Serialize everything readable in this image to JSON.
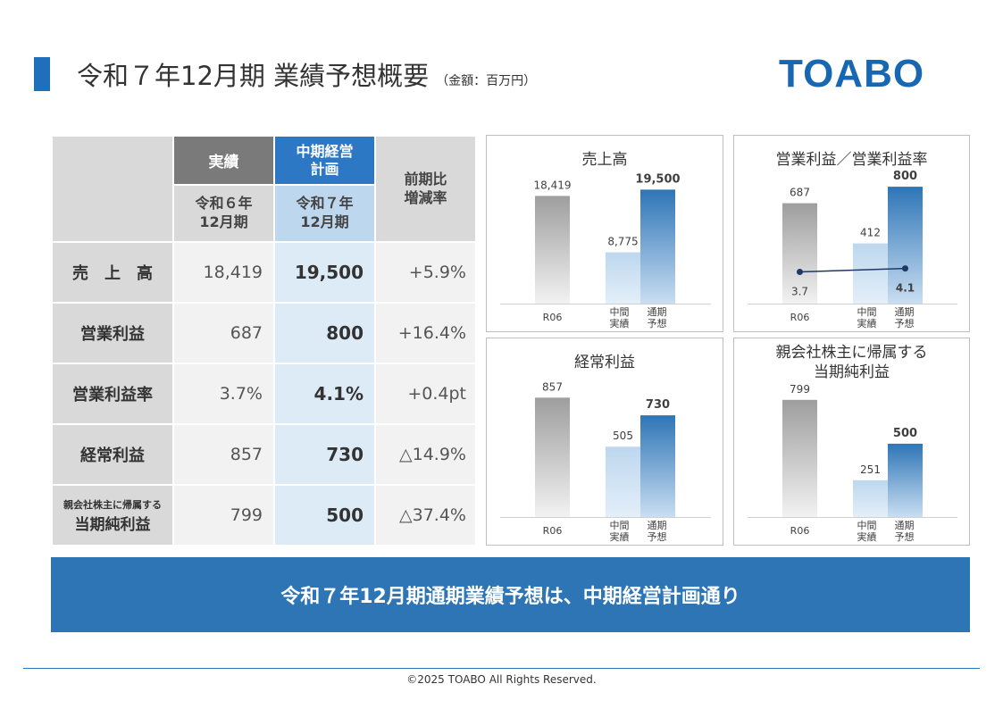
{
  "header": {
    "title": "令和７年12月期 業績予想概要",
    "unit": "（金額：百万円）",
    "logo": "TOABO"
  },
  "table": {
    "col_actual": "実績",
    "col_plan": "中期経営計画",
    "col_plan_l1": "中期経営",
    "col_plan_l2": "計画",
    "col_yoy_l1": "前期比",
    "col_yoy_l2": "増減率",
    "period_actual_l1": "令和６年",
    "period_actual_l2": "12月期",
    "period_plan_l1": "令和７年",
    "period_plan_l2": "12月期",
    "rows": [
      {
        "label": "売　上　高",
        "actual": "18,419",
        "plan": "19,500",
        "yoy": "+5.9%"
      },
      {
        "label": "営業利益",
        "actual": "687",
        "plan": "800",
        "yoy": "+16.4%"
      },
      {
        "label": "営業利益率",
        "actual": "3.7%",
        "plan": "4.1%",
        "yoy": "+0.4pt"
      },
      {
        "label": "経常利益",
        "actual": "857",
        "plan": "730",
        "yoy": "△14.9%"
      },
      {
        "label_small": "親会社株主に帰属する",
        "label": "当期純利益",
        "actual": "799",
        "plan": "500",
        "yoy": "△37.4%"
      }
    ]
  },
  "chart_data": [
    {
      "type": "bar",
      "title": "売上高",
      "categories": [
        "R06",
        "中間実績",
        "通期予想"
      ],
      "values": [
        18419,
        8775,
        19500
      ],
      "value_labels": [
        "18,419",
        "8,775",
        "19,500"
      ],
      "ylim": [
        0,
        22000
      ]
    },
    {
      "type": "bar",
      "title": "営業利益／営業利益率",
      "categories": [
        "R06",
        "中間実績",
        "通期予想"
      ],
      "values": [
        687,
        412,
        800
      ],
      "value_labels": [
        "687",
        "412",
        "800"
      ],
      "ylim": [
        0,
        880
      ],
      "line_series": {
        "values": [
          3.7,
          4.1
        ],
        "labels": [
          "3.7",
          "4.1"
        ],
        "ylim": [
          0,
          15
        ],
        "color": "#1f3864"
      }
    },
    {
      "type": "bar",
      "title": "経常利益",
      "categories": [
        "R06",
        "中間実績",
        "通期予想"
      ],
      "values": [
        857,
        505,
        730
      ],
      "value_labels": [
        "857",
        "505",
        "730"
      ],
      "ylim": [
        0,
        1000
      ]
    },
    {
      "type": "bar",
      "title_l1": "親会社株主に帰属する",
      "title_l2": "当期純利益",
      "categories": [
        "R06",
        "中間実績",
        "通期予想"
      ],
      "values": [
        799,
        251,
        500
      ],
      "value_labels": [
        "799",
        "251",
        "500"
      ],
      "ylim": [
        0,
        950
      ]
    }
  ],
  "category_labels": {
    "r06": "R06",
    "mid_l1": "中間",
    "mid_l2": "実績",
    "full_l1": "通期",
    "full_l2": "予想"
  },
  "colors": {
    "accent": "#2e75b6",
    "gray": "#a6a6a6",
    "light_blue": "#bdd7ee",
    "dark_blue": "#2e75b6"
  },
  "banner": "令和７年12月期通期業績予想は、中期経営計画通り",
  "footer": "©2025 TOABO All Rights Reserved."
}
